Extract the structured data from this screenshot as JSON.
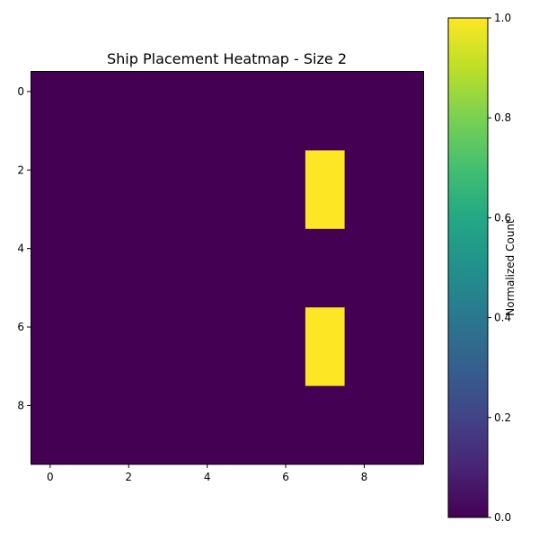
{
  "chart_data": {
    "type": "heatmap",
    "title": "Ship Placement Heatmap - Size 2",
    "xlabel": "",
    "ylabel": "",
    "rows": 10,
    "cols": 10,
    "x_ticks": [
      "0",
      "2",
      "4",
      "6",
      "8"
    ],
    "y_ticks": [
      "0",
      "2",
      "4",
      "6",
      "8"
    ],
    "grid": false,
    "values": [
      [
        0,
        0,
        0,
        0,
        0,
        0,
        0,
        0,
        0,
        0
      ],
      [
        0,
        0,
        0,
        0,
        0,
        0,
        0,
        0,
        0,
        0
      ],
      [
        0,
        0,
        0,
        0,
        0,
        0,
        0,
        1,
        0,
        0
      ],
      [
        0,
        0,
        0,
        0,
        0,
        0,
        0,
        1,
        0,
        0
      ],
      [
        0,
        0,
        0,
        0,
        0,
        0,
        0,
        0,
        0,
        0
      ],
      [
        0,
        0,
        0,
        0,
        0,
        0,
        0,
        0,
        0,
        0
      ],
      [
        0,
        0,
        0,
        0,
        0,
        0,
        0,
        1,
        0,
        0
      ],
      [
        0,
        0,
        0,
        0,
        0,
        0,
        0,
        1,
        0,
        0
      ],
      [
        0,
        0,
        0,
        0,
        0,
        0,
        0,
        0,
        0,
        0
      ],
      [
        0,
        0,
        0,
        0,
        0,
        0,
        0,
        0,
        0,
        0
      ]
    ],
    "colormap": "viridis",
    "vmin": 0,
    "vmax": 1,
    "colorbar": {
      "label": "Normalized Count",
      "ticks": [
        "0.0",
        "0.2",
        "0.4",
        "0.6",
        "0.8",
        "1.0"
      ],
      "placement": "right"
    },
    "colors": {
      "low": "#440154",
      "high": "#fde725"
    }
  }
}
